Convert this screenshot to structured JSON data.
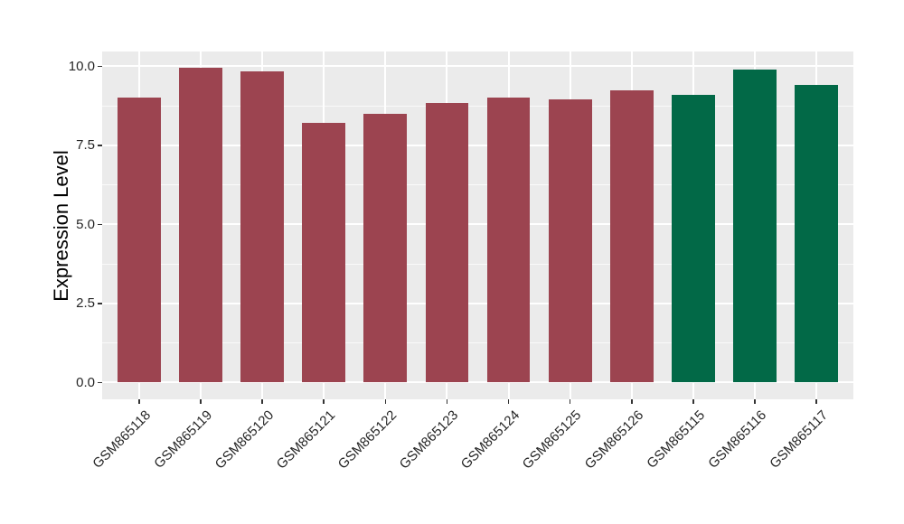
{
  "chart_data": {
    "type": "bar",
    "title": "",
    "xlabel": "",
    "ylabel": "Expression Level",
    "categories": [
      "GSM865118",
      "GSM865119",
      "GSM865120",
      "GSM865121",
      "GSM865122",
      "GSM865123",
      "GSM865124",
      "GSM865125",
      "GSM865126",
      "GSM865115",
      "GSM865116",
      "GSM865117"
    ],
    "values": [
      9.0,
      9.95,
      9.85,
      8.2,
      8.5,
      8.85,
      9.0,
      8.95,
      9.25,
      9.1,
      9.9,
      9.4
    ],
    "bar_colors": [
      "#9C4450",
      "#9C4450",
      "#9C4450",
      "#9C4450",
      "#9C4450",
      "#9C4450",
      "#9C4450",
      "#9C4450",
      "#9C4450",
      "#026947",
      "#026947",
      "#026947"
    ],
    "ylim": [
      0,
      10
    ],
    "ytick_values": [
      0,
      2.5,
      5,
      7.5,
      10
    ],
    "ytick_labels": [
      "0.0",
      "2.5",
      "5.0",
      "7.5",
      "10.0"
    ],
    "minor_gridline_values": [
      1.25,
      3.75,
      6.25,
      8.75
    ],
    "grid": true,
    "legend": "none",
    "colors": {
      "panel_background": "#EBEBEB",
      "gridline": "#FFFFFF",
      "axis_text": "#262626",
      "tick_mark": "#333333",
      "red_group": "#9C4450",
      "green_group": "#026947"
    }
  }
}
